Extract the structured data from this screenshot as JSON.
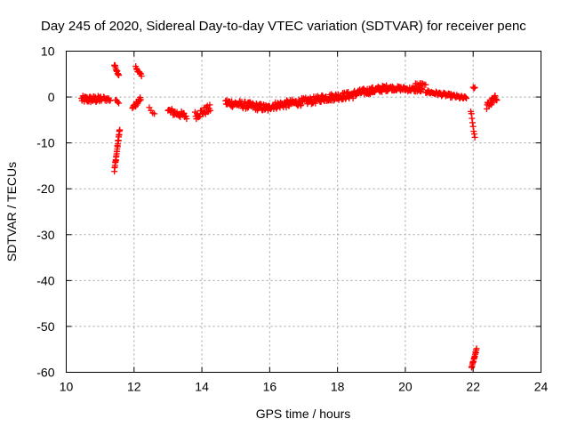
{
  "chart_data": {
    "type": "scatter",
    "title": "Day 245 of 2020, Sidereal Day-to-day VTEC variation (SDTVAR) for receiver penc",
    "xlabel": "GPS time / hours",
    "ylabel": "SDTVAR / TECUs",
    "xlim": [
      10,
      24
    ],
    "ylim": [
      -60,
      10
    ],
    "xticks": [
      10,
      12,
      14,
      16,
      18,
      20,
      22,
      24
    ],
    "yticks": [
      10,
      0,
      -10,
      -20,
      -30,
      -40,
      -50,
      -60
    ],
    "xtick_labels": [
      "10",
      "12",
      "14",
      "16",
      "18",
      "20",
      "22",
      "24"
    ],
    "ytick_labels": [
      "10",
      "0",
      "-10",
      "-20",
      "-30",
      "-40",
      "-50",
      "-60"
    ],
    "grid": true,
    "marker": "+",
    "color": "#ff0000",
    "series": [
      {
        "name": "SDTVAR",
        "segments": [
          {
            "x0": 10.45,
            "x1": 11.05,
            "y_start": -0.5,
            "y_end": -0.5,
            "spread": 1.5,
            "n": 45
          },
          {
            "x0": 11.1,
            "x1": 11.3,
            "y_start": -0.3,
            "y_end": -0.6,
            "spread": 1.0,
            "n": 10
          },
          {
            "x0": 11.42,
            "x1": 11.55,
            "y_start": 7.0,
            "y_end": 4.8,
            "spread": 0.6,
            "n": 12
          },
          {
            "x0": 11.42,
            "x1": 11.58,
            "y_start": -16.0,
            "y_end": -7.0,
            "spread": 0.8,
            "n": 26
          },
          {
            "x0": 11.45,
            "x1": 11.55,
            "y_start": -0.8,
            "y_end": -1.2,
            "spread": 0.5,
            "n": 4
          },
          {
            "x0": 11.95,
            "x1": 12.2,
            "y_start": -2.5,
            "y_end": -0.3,
            "spread": 1.0,
            "n": 14
          },
          {
            "x0": 12.05,
            "x1": 12.22,
            "y_start": 6.5,
            "y_end": 4.5,
            "spread": 0.6,
            "n": 10
          },
          {
            "x0": 12.45,
            "x1": 12.6,
            "y_start": -2.5,
            "y_end": -3.5,
            "spread": 0.6,
            "n": 4
          },
          {
            "x0": 13.0,
            "x1": 13.55,
            "y_start": -3.0,
            "y_end": -4.2,
            "spread": 1.5,
            "n": 30
          },
          {
            "x0": 13.8,
            "x1": 14.25,
            "y_start": -4.0,
            "y_end": -2.5,
            "spread": 1.8,
            "n": 26
          },
          {
            "x0": 14.7,
            "x1": 16.0,
            "y_start": -1.2,
            "y_end": -2.5,
            "spread": 1.6,
            "n": 80
          },
          {
            "x0": 16.0,
            "x1": 17.5,
            "y_start": -2.0,
            "y_end": -0.5,
            "spread": 1.6,
            "n": 90
          },
          {
            "x0": 17.5,
            "x1": 18.5,
            "y_start": -0.3,
            "y_end": 0.5,
            "spread": 1.6,
            "n": 70
          },
          {
            "x0": 18.5,
            "x1": 19.5,
            "y_start": 0.8,
            "y_end": 2.0,
            "spread": 1.4,
            "n": 70
          },
          {
            "x0": 19.5,
            "x1": 20.5,
            "y_start": 2.0,
            "y_end": 1.5,
            "spread": 1.0,
            "n": 60
          },
          {
            "x0": 20.3,
            "x1": 20.6,
            "y_start": 2.8,
            "y_end": 2.8,
            "spread": 0.4,
            "n": 8
          },
          {
            "x0": 20.6,
            "x1": 21.8,
            "y_start": 1.2,
            "y_end": -0.3,
            "spread": 0.8,
            "n": 60
          },
          {
            "x0": 21.93,
            "x1": 22.05,
            "y_start": -3.0,
            "y_end": -9.0,
            "spread": 0.5,
            "n": 8
          },
          {
            "x0": 22.0,
            "x1": 22.05,
            "y_start": 2.0,
            "y_end": 2.0,
            "spread": 0.3,
            "n": 3
          },
          {
            "x0": 21.95,
            "x1": 22.1,
            "y_start": -59.0,
            "y_end": -55.0,
            "spread": 0.5,
            "n": 16
          },
          {
            "x0": 22.4,
            "x1": 22.7,
            "y_start": -2.0,
            "y_end": 0.0,
            "spread": 1.5,
            "n": 25
          }
        ]
      }
    ]
  }
}
